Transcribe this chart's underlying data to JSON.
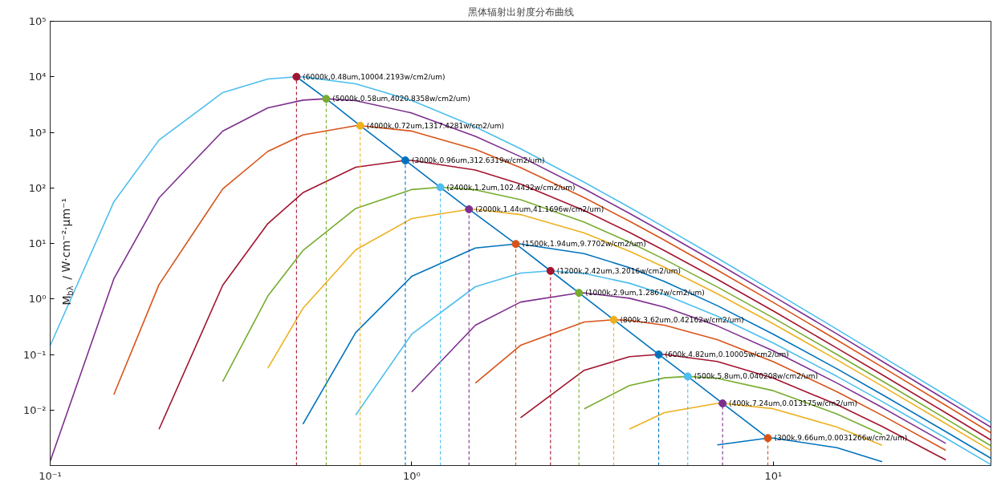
{
  "chart_data": {
    "type": "line",
    "title": "黑体辐射出射度分布曲线",
    "ylabel": "M$_{bλ}$ / W·cm⁻²·μm⁻¹",
    "log": "xy",
    "xlim": [
      0.1,
      40
    ],
    "ylim": [
      0.001,
      100000
    ],
    "marker": "none",
    "line_style": "solid",
    "xticks": [
      {
        "value": 0.1,
        "label": "10⁻¹"
      },
      {
        "value": 1,
        "label": "10⁰"
      },
      {
        "value": 10,
        "label": "10¹"
      }
    ],
    "yticks": [
      {
        "value": 0.01,
        "label": "10⁻²"
      },
      {
        "value": 0.1,
        "label": "10⁻¹"
      },
      {
        "value": 1,
        "label": "10⁰"
      },
      {
        "value": 10,
        "label": "10¹"
      },
      {
        "value": 100,
        "label": "10²"
      },
      {
        "value": 1000,
        "label": "10³"
      },
      {
        "value": 10000,
        "label": "10⁴"
      },
      {
        "value": 100000,
        "label": "10⁵"
      }
    ],
    "series": [
      {
        "color": "#4dbeee",
        "x": [
          0.1,
          0.15,
          0.2,
          0.3,
          0.4,
          0.48,
          0.5,
          0.7,
          1,
          1.5,
          2,
          3,
          4,
          5,
          7,
          10,
          15,
          20,
          30,
          40
        ],
        "values": [
          0.144,
          56,
          726,
          5200,
          9120,
          10004.2193,
          9970,
          7480,
          3740,
          1250,
          505,
          126,
          44.6,
          19.5,
          5.46,
          1.38,
          0.284,
          0.0918,
          0.0185,
          0.00592
        ]
      },
      {
        "color": "#7e2f8e",
        "x": [
          0.1,
          0.15,
          0.2,
          0.3,
          0.4,
          0.5,
          0.58,
          0.7,
          1,
          1.5,
          2,
          3,
          4,
          5,
          7,
          10,
          15,
          20,
          30,
          40
        ],
        "values": [
          0.00119,
          2.3,
          65.9,
          1052,
          2750,
          3800,
          4020.8358,
          3715,
          2230,
          849,
          364,
          95.7,
          34.8,
          15.4,
          4.4,
          1.12,
          0.234,
          0.0755,
          0.0153,
          0.0049
        ]
      },
      {
        "color": "#d95319",
        "x": [
          0.15,
          0.2,
          0.3,
          0.4,
          0.5,
          0.7,
          0.72,
          1,
          1.5,
          2,
          3,
          4,
          5,
          7,
          10,
          15,
          20,
          30,
          40
        ],
        "values": [
          0.019,
          1.81,
          95.7,
          454,
          899,
          1315,
          1317.4281,
          1054,
          493,
          232,
          66.5,
          25.1,
          11.4,
          3.31,
          0.865,
          0.182,
          0.0596,
          0.0121,
          0.00387
        ]
      },
      {
        "color": "#a2142f",
        "x": [
          0.2,
          0.3,
          0.4,
          0.5,
          0.7,
          0.96,
          1,
          1.5,
          2,
          3,
          4,
          5,
          7,
          10,
          15,
          20,
          30,
          40
        ],
        "values": [
          0.0045,
          1.76,
          22.7,
          81.7,
          236,
          312.6319,
          312,
          210,
          117,
          39.1,
          15.8,
          7.43,
          2.26,
          0.608,
          0.13,
          0.0432,
          0.0089,
          0.00287
        ]
      },
      {
        "color": "#77ac30",
        "x": [
          0.3,
          0.4,
          0.5,
          0.7,
          1,
          1.2,
          1.5,
          2,
          3,
          4,
          5,
          7,
          10,
          15,
          20,
          30,
          40
        ],
        "values": [
          0.0323,
          1.13,
          7.43,
          42.5,
          93.3,
          102.4432,
          92.3,
          61.4,
          24.2,
          10.5,
          5.16,
          1.64,
          0.456,
          0.1,
          0.0334,
          0.00697,
          0.00226
        ]
      },
      {
        "color": "#edb120",
        "x": [
          0.4,
          0.5,
          0.7,
          1,
          1.44,
          1.5,
          2,
          3,
          4,
          5,
          7,
          10,
          15,
          20,
          30,
          40
        ],
        "values": [
          0.0565,
          0.675,
          7.67,
          28.1,
          41.1696,
          41.1,
          33,
          15.4,
          7.24,
          3.72,
          1.24,
          0.356,
          0.0802,
          0.027,
          0.00569,
          0.00186
        ]
      },
      {
        "color": "#0072bd",
        "x": [
          0.5,
          0.7,
          1,
          1.5,
          1.94,
          2,
          3,
          4,
          5,
          7,
          10,
          15,
          20,
          30,
          40
        ],
        "values": [
          0.00557,
          0.249,
          2.55,
          8.26,
          9.7702,
          9.75,
          6.56,
          3.66,
          2.06,
          0.757,
          0.232,
          0.0552,
          0.019,
          0.00407,
          0.00135
        ]
      },
      {
        "color": "#4dbeee",
        "x": [
          0.7,
          1,
          1.5,
          2,
          2.42,
          3,
          4,
          5,
          7,
          10,
          15,
          20,
          30,
          40
        ],
        "values": [
          0.00811,
          0.232,
          1.66,
          2.92,
          3.2016,
          2.88,
          1.92,
          1.2,
          0.49,
          0.161,
          0.0403,
          0.01426,
          0.00313,
          0.00104
        ]
      },
      {
        "color": "#7e2f8e",
        "x": [
          1,
          1.5,
          2,
          2.9,
          3,
          4,
          5,
          7,
          10,
          15,
          20,
          30
        ],
        "values": [
          0.0211,
          0.337,
          0.879,
          1.2867,
          1.28,
          1.03,
          0.713,
          0.327,
          0.116,
          0.0306,
          0.01112,
          0.00251
        ]
      },
      {
        "color": "#d95319",
        "x": [
          1.5,
          2,
          3,
          3.62,
          4,
          5,
          7,
          10,
          15,
          20,
          30
        ],
        "values": [
          0.0306,
          0.146,
          0.385,
          0.42162,
          0.412,
          0.337,
          0.185,
          0.0741,
          0.0213,
          0.00802,
          0.00188
        ]
      },
      {
        "color": "#a2142f",
        "x": [
          2,
          3,
          4,
          4.82,
          5,
          7,
          10,
          15,
          20,
          30
        ],
        "values": [
          0.00726,
          0.052,
          0.0912,
          0.10005,
          0.0998,
          0.0748,
          0.0374,
          0.0125,
          0.00505,
          0.00126
        ]
      },
      {
        "color": "#77ac30",
        "x": [
          3,
          4,
          5,
          5.8,
          7,
          10,
          15,
          20
        ],
        "values": [
          0.0105,
          0.0275,
          0.038,
          0.040208,
          0.0372,
          0.0223,
          0.00849,
          0.00363
        ]
      },
      {
        "color": "#edb120",
        "x": [
          4,
          5,
          7,
          7.24,
          10,
          15,
          20
        ],
        "values": [
          0.00454,
          0.00899,
          0.01314,
          0.013175,
          0.01054,
          0.00493,
          0.00232
        ]
      },
      {
        "color": "#0072bd",
        "x": [
          7,
          9.66,
          10,
          15,
          20
        ],
        "values": [
          0.00236,
          0.0031266,
          0.00312,
          0.0021,
          0.00117
        ]
      },
      {
        "type": "line",
        "color": "#0072bd",
        "x": [
          0.48,
          0.58,
          0.72,
          0.96,
          1.2,
          1.44,
          1.94,
          2.42,
          2.9,
          3.62,
          4.82,
          5.8,
          7.24,
          9.66
        ],
        "values": [
          10004.2193,
          4020.8358,
          1317.4281,
          312.6319,
          102.4432,
          41.1696,
          9.7702,
          3.2016,
          1.2867,
          0.42162,
          0.10005,
          0.040208,
          0.013175,
          0.0031266
        ]
      },
      {
        "type": "lollipop",
        "marker": "circle",
        "line_style": "dashed",
        "x": [
          0.48,
          0.58,
          0.72,
          0.96,
          1.2,
          1.44,
          1.94,
          2.42,
          2.9,
          3.62,
          4.82,
          5.8,
          7.24,
          9.66
        ],
        "values": [
          10004.2193,
          4020.8358,
          1317.4281,
          312.6319,
          102.4432,
          41.1696,
          9.7702,
          3.2016,
          1.2867,
          0.42162,
          0.10005,
          0.040208,
          0.013175,
          0.0031266
        ],
        "colors": [
          "#a2142f",
          "#77ac30",
          "#edb120",
          "#0072bd",
          "#4dbeee",
          "#7e2f8e",
          "#d95319",
          "#a2142f",
          "#77ac30",
          "#edb120",
          "#0072bd",
          "#4dbeee",
          "#7e2f8e",
          "#d95319"
        ]
      }
    ],
    "annotations": [
      {
        "text": "(6000k,0.48um,10004.2193w/cm2/um)",
        "x": 0.48,
        "y": 10004.2193
      },
      {
        "text": "(5000k,0.58um,4020.8358w/cm2/um)",
        "x": 0.58,
        "y": 4020.8358
      },
      {
        "text": "(4000k,0.72um,1317.4281w/cm2/um)",
        "x": 0.72,
        "y": 1317.4281
      },
      {
        "text": "(3000k,0.96um,312.6319w/cm2/um)",
        "x": 0.96,
        "y": 312.6319
      },
      {
        "text": "(2400k,1.2um,102.4432w/cm2/um)",
        "x": 1.2,
        "y": 102.4432
      },
      {
        "text": "(2000k,1.44um,41.1696w/cm2/um)",
        "x": 1.44,
        "y": 41.1696
      },
      {
        "text": "(1500k,1.94um,9.7702w/cm2/um)",
        "x": 1.94,
        "y": 9.7702
      },
      {
        "text": "(1200k,2.42um,3.2016w/cm2/um)",
        "x": 2.42,
        "y": 3.2016
      },
      {
        "text": "(1000k,2.9um,1.2867w/cm2/um)",
        "x": 2.9,
        "y": 1.2867
      },
      {
        "text": "(800k,3.62um,0.42162w/cm2/um)",
        "x": 3.62,
        "y": 0.42162
      },
      {
        "text": "(600k,4.82um,0.10005w/cm2/um)",
        "x": 4.82,
        "y": 0.10005
      },
      {
        "text": "(500k,5.8um,0.040208w/cm2/um)",
        "x": 5.8,
        "y": 0.040208
      },
      {
        "text": "(400k,7.24um,0.013175w/cm2/um)",
        "x": 7.24,
        "y": 0.013175
      },
      {
        "text": "(300k,9.66um,0.0031266w/cm2/um)",
        "x": 9.66,
        "y": 0.0031266
      }
    ]
  }
}
